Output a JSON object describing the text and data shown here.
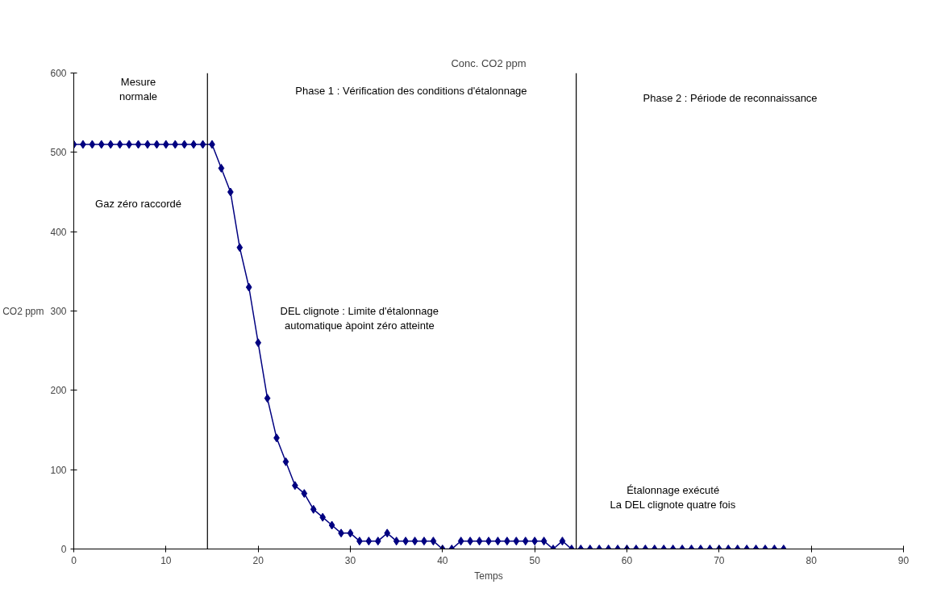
{
  "chart_data": {
    "type": "line",
    "title": "Conc. CO2 ppm",
    "xlabel": "Temps",
    "ylabel": "CO2 ppm",
    "x": [
      0,
      1,
      2,
      3,
      4,
      5,
      6,
      7,
      8,
      9,
      10,
      11,
      12,
      13,
      14,
      15,
      16,
      17,
      18,
      19,
      20,
      21,
      22,
      23,
      24,
      25,
      26,
      27,
      28,
      29,
      30,
      31,
      32,
      33,
      34,
      35,
      36,
      37,
      38,
      39,
      40,
      41,
      42,
      43,
      44,
      45,
      46,
      47,
      48,
      49,
      50,
      51,
      52,
      53,
      54,
      55,
      56,
      57,
      58,
      59,
      60,
      61,
      62,
      63,
      64,
      65,
      66,
      67,
      68,
      69,
      70,
      71,
      72,
      73,
      74,
      75,
      76,
      77
    ],
    "series": [
      {
        "color": "#000080",
        "values": [
          510,
          510,
          510,
          510,
          510,
          510,
          510,
          510,
          510,
          510,
          510,
          510,
          510,
          510,
          510,
          510,
          480,
          450,
          380,
          330,
          260,
          190,
          140,
          110,
          80,
          70,
          50,
          40,
          30,
          20,
          20,
          10,
          10,
          10,
          20,
          10,
          10,
          10,
          10,
          10,
          0,
          0,
          10,
          10,
          10,
          10,
          10,
          10,
          10,
          10,
          10,
          10,
          0,
          10,
          0,
          0,
          0,
          0,
          0,
          0,
          0,
          0,
          0,
          0,
          0,
          0,
          0,
          0,
          0,
          0,
          0,
          0,
          0,
          0,
          0,
          0,
          0,
          0
        ]
      }
    ],
    "marker": "diamond",
    "line_style": "solid",
    "grid": false,
    "xlim": [
      0,
      90
    ],
    "xticks": [
      0,
      10,
      20,
      30,
      40,
      50,
      60,
      70,
      80,
      90
    ],
    "ylim": [
      0,
      600
    ],
    "yticks": [
      0,
      100,
      200,
      300,
      400,
      500,
      600
    ],
    "ref_lines": [
      {
        "axis": "x",
        "value": 14.5,
        "color": "#000000"
      },
      {
        "axis": "x",
        "value": 54.5,
        "color": "#000000"
      }
    ],
    "annotations": [
      "Mesure\nnormale",
      "Gaz zéro raccordé",
      "Phase 1 : Vérification des conditions d'étalonnage",
      "Phase 2 : Période de reconnaissance",
      "DEL clignote : Limite d'étalonnage\nautomatique àpoint zéro atteinte",
      "Étalonnage exécuté\nLa DEL clignote quatre fois"
    ]
  }
}
